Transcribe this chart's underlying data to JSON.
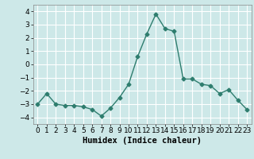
{
  "x": [
    0,
    1,
    2,
    3,
    4,
    5,
    6,
    7,
    8,
    9,
    10,
    11,
    12,
    13,
    14,
    15,
    16,
    17,
    18,
    19,
    20,
    21,
    22,
    23
  ],
  "y": [
    -3.0,
    -2.2,
    -3.0,
    -3.1,
    -3.1,
    -3.2,
    -3.4,
    -3.9,
    -3.3,
    -2.5,
    -1.5,
    0.6,
    2.3,
    3.8,
    2.7,
    2.5,
    -1.1,
    -1.1,
    -1.5,
    -1.6,
    -2.2,
    -1.9,
    -2.7,
    -3.4
  ],
  "line_color": "#2e7d6e",
  "marker": "D",
  "marker_size": 2.5,
  "bg_color": "#cde8e8",
  "grid_color": "#ffffff",
  "xlabel": "Humidex (Indice chaleur)",
  "xlim": [
    -0.5,
    23.5
  ],
  "ylim": [
    -4.5,
    4.5
  ],
  "yticks": [
    -4,
    -3,
    -2,
    -1,
    0,
    1,
    2,
    3,
    4
  ],
  "xticks": [
    0,
    1,
    2,
    3,
    4,
    5,
    6,
    7,
    8,
    9,
    10,
    11,
    12,
    13,
    14,
    15,
    16,
    17,
    18,
    19,
    20,
    21,
    22,
    23
  ],
  "tick_fontsize": 6.5,
  "xlabel_fontsize": 7.5,
  "line_width": 1.0
}
